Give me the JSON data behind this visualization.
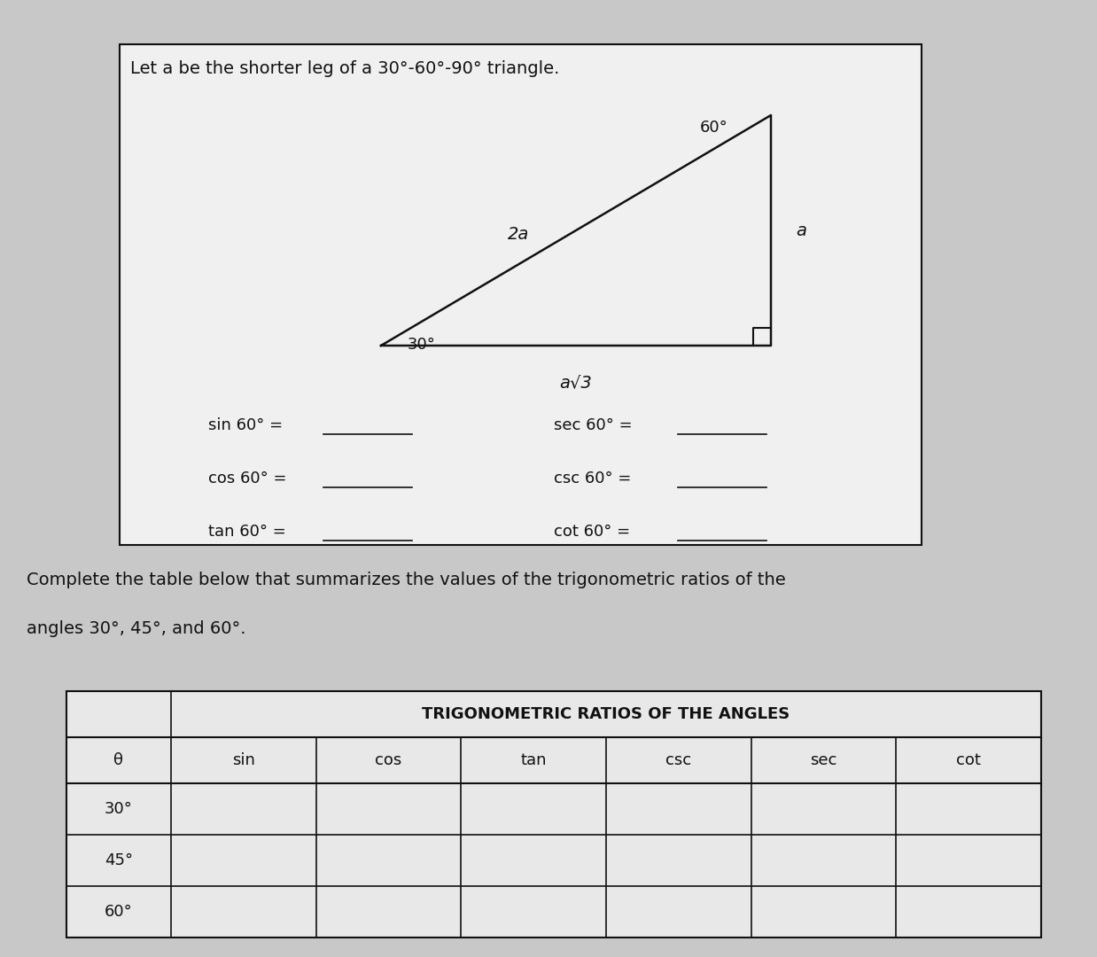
{
  "bg_color": "#c8c8c8",
  "fig_width": 12.38,
  "fig_height": 10.8,
  "box_title_text": "Let a be the shorter leg of a 30°-60°-90° triangle.",
  "triangle_label_hyp": "2a",
  "triangle_label_base": "a√3",
  "triangle_label_vert": "a",
  "triangle_angle_30": "30°",
  "triangle_angle_60": "60°",
  "trig_left_labels": [
    "sin 60° =",
    "cos 60° =",
    "tan 60° ="
  ],
  "trig_right_labels": [
    "sec 60° =",
    "csc 60° =",
    "cot 60° ="
  ],
  "below_text1": "Complete the table below that summarizes the values of the trigonometric ratios of the",
  "below_text2": "angles 30°, 45°, and 60°.",
  "table_title": "TRIGONOMETRIC RATIOS OF THE ANGLES",
  "table_headers": [
    "θ",
    "sin",
    "cos",
    "tan",
    "csc",
    "sec",
    "cot"
  ],
  "table_rows": [
    "30°",
    "45°",
    "60°"
  ],
  "box_color": "#f0f0f0",
  "text_color": "#111111",
  "line_color": "#111111",
  "table_bg": "#e8e8e8"
}
